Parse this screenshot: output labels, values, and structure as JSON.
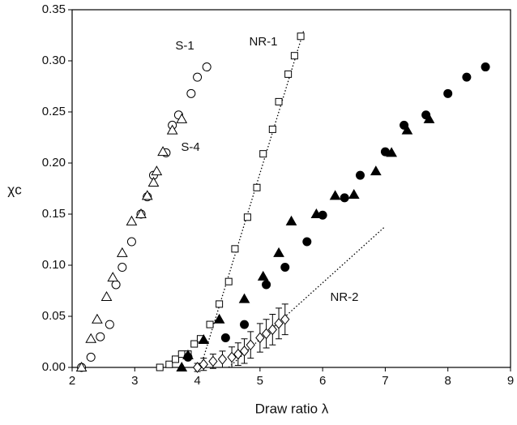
{
  "chart_data": {
    "type": "scatter",
    "xlabel": "Draw ratio λ",
    "ylabel": "χc",
    "xlim": [
      2,
      9
    ],
    "xticks": [
      2,
      3,
      4,
      5,
      6,
      7,
      8,
      9
    ],
    "ylim": [
      0,
      0.35
    ],
    "yticks": [
      {
        "value": 0,
        "label": "0.00"
      },
      {
        "value": 0.05,
        "label": "0.05"
      },
      {
        "value": 0.1,
        "label": "0.10"
      },
      {
        "value": 0.15,
        "label": "0.15"
      },
      {
        "value": 0.2,
        "label": "0.20"
      },
      {
        "value": 0.25,
        "label": "0.25"
      },
      {
        "value": 0.3,
        "label": "0.30"
      },
      {
        "value": 0.35,
        "label": "0.35"
      }
    ],
    "color": "#000000",
    "series": [
      {
        "name": "S-1",
        "marker": "circle",
        "filled": false,
        "x": [
          2.15,
          2.3,
          2.45,
          2.6,
          2.7,
          2.8,
          2.95,
          3.1,
          3.2,
          3.3,
          3.5,
          3.6,
          3.7,
          3.9,
          4.0,
          4.15
        ],
        "values": [
          0.0,
          0.01,
          0.03,
          0.042,
          0.081,
          0.098,
          0.123,
          0.15,
          0.167,
          0.188,
          0.21,
          0.237,
          0.247,
          0.268,
          0.284,
          0.294
        ]
      },
      {
        "name": "S-4",
        "marker": "triangle",
        "filled": false,
        "x": [
          2.15,
          2.3,
          2.4,
          2.55,
          2.65,
          2.8,
          2.95,
          3.1,
          3.2,
          3.3,
          3.35,
          3.45,
          3.6,
          3.75
        ],
        "values": [
          0.0,
          0.028,
          0.047,
          0.069,
          0.088,
          0.112,
          0.143,
          0.15,
          0.168,
          0.181,
          0.192,
          0.211,
          0.232,
          0.243
        ]
      },
      {
        "name": "NR-1",
        "marker": "square",
        "filled": false,
        "x": [
          3.4,
          3.55,
          3.65,
          3.75,
          3.85,
          3.95,
          4.05,
          4.2,
          4.35,
          4.5,
          4.6,
          4.8,
          4.95,
          5.05,
          5.2,
          5.3,
          5.45,
          5.55,
          5.65
        ],
        "values": [
          0.0,
          0.003,
          0.008,
          0.013,
          0.013,
          0.023,
          0.028,
          0.042,
          0.062,
          0.084,
          0.116,
          0.147,
          0.176,
          0.209,
          0.233,
          0.26,
          0.287,
          0.305,
          0.324
        ]
      },
      {
        "marker": "circle",
        "filled": true,
        "x": [
          3.85,
          4.45,
          4.75,
          5.1,
          5.4,
          5.75,
          6.0,
          6.35,
          6.6,
          7.0,
          7.3,
          7.65,
          8.0,
          8.3,
          8.6
        ],
        "values": [
          0.01,
          0.029,
          0.042,
          0.081,
          0.098,
          0.123,
          0.149,
          0.166,
          0.188,
          0.211,
          0.237,
          0.247,
          0.268,
          0.284,
          0.294
        ]
      },
      {
        "marker": "triangle",
        "filled": true,
        "x": [
          3.75,
          3.85,
          4.1,
          4.35,
          4.75,
          5.05,
          5.3,
          5.5,
          5.9,
          6.2,
          6.5,
          6.85,
          7.1,
          7.35,
          7.7
        ],
        "values": [
          0.0,
          0.012,
          0.027,
          0.047,
          0.067,
          0.089,
          0.112,
          0.143,
          0.15,
          0.168,
          0.169,
          0.192,
          0.21,
          0.232,
          0.243
        ]
      },
      {
        "name": "NR-2",
        "marker": "diamond",
        "filled": false,
        "x": [
          4.0,
          4.1,
          4.25,
          4.4,
          4.55,
          4.65,
          4.75,
          4.85,
          5.0,
          5.1,
          5.2,
          5.3,
          5.4
        ],
        "values": [
          0.0,
          0.003,
          0.006,
          0.008,
          0.01,
          0.013,
          0.016,
          0.022,
          0.029,
          0.033,
          0.037,
          0.043,
          0.047
        ],
        "errors": [
          0.004,
          0.006,
          0.007,
          0.008,
          0.01,
          0.011,
          0.012,
          0.013,
          0.014,
          0.014,
          0.015,
          0.015,
          0.015
        ]
      }
    ],
    "lines": [
      {
        "x": [
          4.05,
          5.7
        ],
        "values": [
          0.0,
          0.33
        ]
      },
      {
        "x": [
          4.5,
          7.0
        ],
        "values": [
          0.0,
          0.138
        ]
      }
    ]
  }
}
